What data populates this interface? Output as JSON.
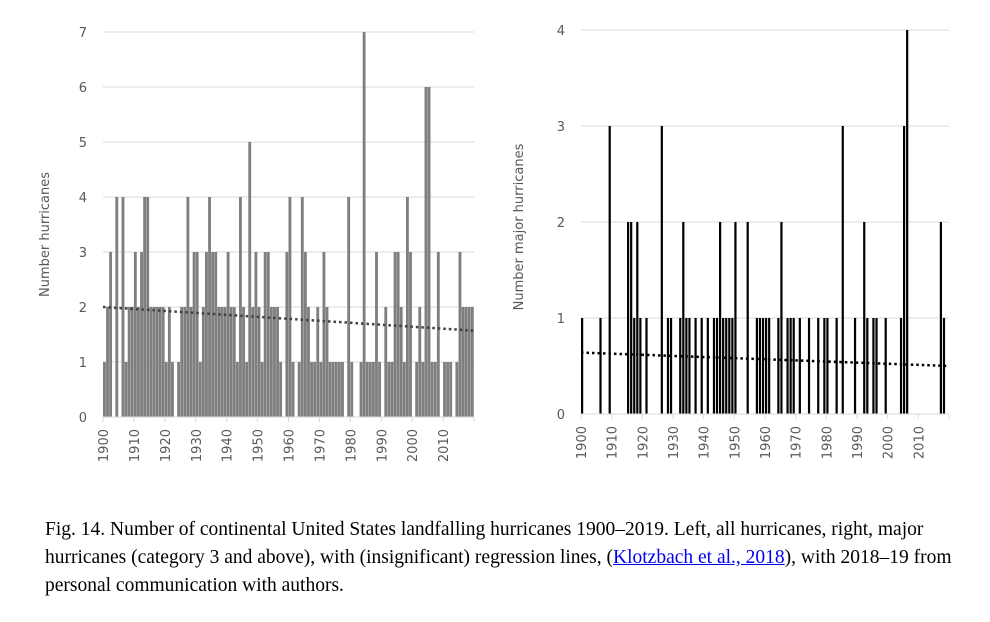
{
  "chart_data": [
    {
      "type": "bar",
      "title": "",
      "xlabel": "",
      "ylabel": "Number hurricanes",
      "ylim": [
        0,
        7
      ],
      "yticks": [
        "0",
        "1",
        "2",
        "3",
        "4",
        "5",
        "6",
        "7"
      ],
      "xlim": [
        1900,
        2019
      ],
      "xtick_labels": [
        "1900",
        "1910",
        "1920",
        "1930",
        "1940",
        "1950",
        "1960",
        "1970",
        "1980",
        "1990",
        "2000",
        "2010"
      ],
      "grid": true,
      "bar_color": "#7f7f7f",
      "years_start": 1900,
      "values": [
        1,
        2,
        3,
        0,
        4,
        0,
        4,
        1,
        2,
        2,
        3,
        2,
        3,
        4,
        4,
        2,
        2,
        2,
        2,
        2,
        1,
        2,
        1,
        0,
        1,
        2,
        2,
        4,
        2,
        3,
        3,
        1,
        2,
        3,
        4,
        3,
        3,
        2,
        2,
        2,
        3,
        2,
        2,
        1,
        4,
        2,
        1,
        5,
        2,
        3,
        2,
        1,
        3,
        3,
        2,
        2,
        2,
        1,
        0,
        3,
        4,
        1,
        0,
        1,
        4,
        3,
        2,
        1,
        1,
        2,
        1,
        3,
        2,
        1,
        1,
        1,
        1,
        1,
        0,
        4,
        1,
        0,
        0,
        1,
        7,
        1,
        1,
        1,
        3,
        1,
        0,
        2,
        1,
        1,
        3,
        3,
        2,
        1,
        4,
        3,
        0,
        1,
        2,
        1,
        6,
        6,
        1,
        1,
        3,
        0,
        1,
        1,
        1,
        0,
        1,
        3,
        2,
        2,
        2,
        2
      ],
      "trendline": {
        "style": "dotted",
        "color": "#404040",
        "start": 2.0,
        "end": 1.57
      }
    },
    {
      "type": "bar",
      "title": "",
      "xlabel": "",
      "ylabel": "Number major hurricanes",
      "ylim": [
        0,
        4
      ],
      "yticks": [
        "0",
        "1",
        "2",
        "3",
        "4"
      ],
      "xlim": [
        1900,
        2019
      ],
      "xtick_labels": [
        "1900",
        "1910",
        "1920",
        "1930",
        "1940",
        "1950",
        "1960",
        "1970",
        "1980",
        "1990",
        "2000",
        "2010"
      ],
      "grid": true,
      "bar_color": "#000000",
      "years_start": 1900,
      "values": [
        1,
        0,
        0,
        0,
        0,
        0,
        1,
        0,
        0,
        3,
        0,
        0,
        0,
        0,
        0,
        2,
        2,
        1,
        2,
        1,
        0,
        1,
        0,
        0,
        0,
        0,
        3,
        0,
        1,
        1,
        0,
        0,
        1,
        2,
        1,
        1,
        0,
        1,
        0,
        1,
        0,
        1,
        0,
        1,
        1,
        2,
        1,
        1,
        1,
        1,
        2,
        0,
        0,
        0,
        2,
        0,
        0,
        1,
        1,
        1,
        1,
        1,
        0,
        0,
        1,
        2,
        0,
        1,
        1,
        1,
        0,
        1,
        0,
        0,
        1,
        0,
        0,
        1,
        0,
        1,
        1,
        0,
        0,
        1,
        0,
        3,
        0,
        0,
        0,
        1,
        0,
        0,
        2,
        1,
        0,
        1,
        1,
        0,
        0,
        1,
        0,
        0,
        0,
        0,
        1,
        3,
        4,
        0,
        0,
        0,
        0,
        0,
        0,
        0,
        0,
        0,
        0,
        2,
        1,
        0
      ],
      "trendline": {
        "style": "dotted",
        "color": "#000000",
        "start": 0.64,
        "end": 0.5
      }
    }
  ],
  "caption": {
    "part1": "Fig. 14. Number of continental United States landfalling hurricanes 1900–2019. Left, all hurricanes, right, major hurricanes (category 3 and above), with (insignificant) regression lines, (",
    "link": "Klotzbach et al., 2018",
    "part2": "), with 2018–19 from personal communication with authors."
  }
}
